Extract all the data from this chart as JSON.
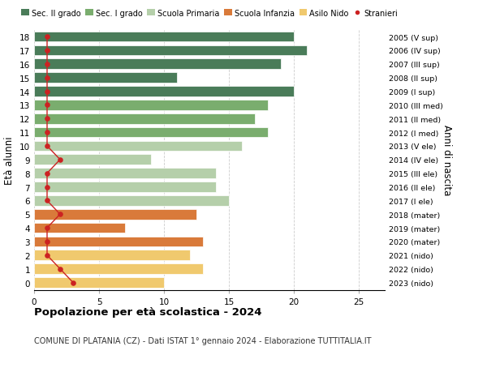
{
  "ages": [
    18,
    17,
    16,
    15,
    14,
    13,
    12,
    11,
    10,
    9,
    8,
    7,
    6,
    5,
    4,
    3,
    2,
    1,
    0
  ],
  "right_labels": [
    "2005 (V sup)",
    "2006 (IV sup)",
    "2007 (III sup)",
    "2008 (II sup)",
    "2009 (I sup)",
    "2010 (III med)",
    "2011 (II med)",
    "2012 (I med)",
    "2013 (V ele)",
    "2014 (IV ele)",
    "2015 (III ele)",
    "2016 (II ele)",
    "2017 (I ele)",
    "2018 (mater)",
    "2019 (mater)",
    "2020 (mater)",
    "2021 (nido)",
    "2022 (nido)",
    "2023 (nido)"
  ],
  "bar_values": [
    20,
    21,
    19,
    11,
    20,
    18,
    17,
    18,
    16,
    9,
    14,
    14,
    15,
    12.5,
    7,
    13,
    12,
    13,
    10
  ],
  "stranieri_values": [
    1,
    1,
    1,
    1,
    1,
    1,
    1,
    1,
    1,
    2,
    1,
    1,
    1,
    2,
    1,
    1,
    1,
    2,
    3
  ],
  "bar_colors": [
    "#4a7c59",
    "#4a7c59",
    "#4a7c59",
    "#4a7c59",
    "#4a7c59",
    "#7aad6e",
    "#7aad6e",
    "#7aad6e",
    "#b5cfaa",
    "#b5cfaa",
    "#b5cfaa",
    "#b5cfaa",
    "#b5cfaa",
    "#d97a3a",
    "#d97a3a",
    "#d97a3a",
    "#f0c96e",
    "#f0c96e",
    "#f0c96e"
  ],
  "legend_labels": [
    "Sec. II grado",
    "Sec. I grado",
    "Scuola Primaria",
    "Scuola Infanzia",
    "Asilo Nido",
    "Stranieri"
  ],
  "legend_colors": [
    "#4a7c59",
    "#7aad6e",
    "#b5cfaa",
    "#d97a3a",
    "#f0c96e",
    "#cc2222"
  ],
  "stranieri_color": "#cc2222",
  "title_bold": "Popolazione per età scolastica - 2024",
  "subtitle": "COMUNE DI PLATANIA (CZ) - Dati ISTAT 1° gennaio 2024 - Elaborazione TUTTITALIA.IT",
  "ylabel": "Età alunni",
  "right_ylabel": "Anni di nascita",
  "xlim": [
    0,
    27
  ],
  "xticks": [
    0,
    5,
    10,
    15,
    20,
    25
  ],
  "bar_height": 0.75,
  "background_color": "#ffffff",
  "grid_color": "#cccccc"
}
